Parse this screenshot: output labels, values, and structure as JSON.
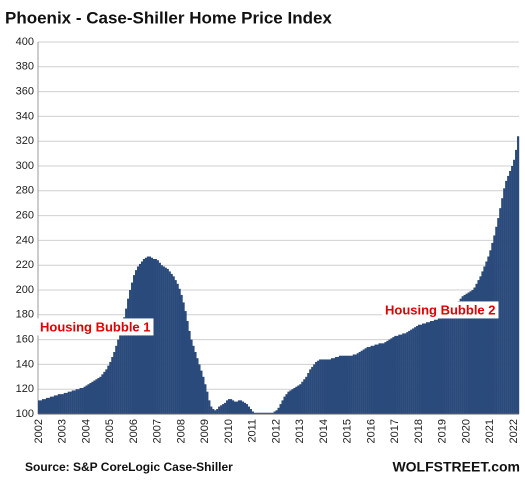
{
  "chart_data": {
    "type": "bar",
    "title": "Phoenix - Case-Shiller Home Price Index",
    "categories": [
      "2002",
      null,
      null,
      null,
      null,
      null,
      null,
      null,
      null,
      null,
      null,
      null,
      "2003",
      null,
      null,
      null,
      null,
      null,
      null,
      null,
      null,
      null,
      null,
      null,
      "2004",
      null,
      null,
      null,
      null,
      null,
      null,
      null,
      null,
      null,
      null,
      null,
      "2005",
      null,
      null,
      null,
      null,
      null,
      null,
      null,
      null,
      null,
      null,
      null,
      "2006",
      null,
      null,
      null,
      null,
      null,
      null,
      null,
      null,
      null,
      null,
      null,
      "2007",
      null,
      null,
      null,
      null,
      null,
      null,
      null,
      null,
      null,
      null,
      null,
      "2008",
      null,
      null,
      null,
      null,
      null,
      null,
      null,
      null,
      null,
      null,
      null,
      "2009",
      null,
      null,
      null,
      null,
      null,
      null,
      null,
      null,
      null,
      null,
      null,
      "2010",
      null,
      null,
      null,
      null,
      null,
      null,
      null,
      null,
      null,
      null,
      null,
      "2011",
      null,
      null,
      null,
      null,
      null,
      null,
      null,
      null,
      null,
      null,
      null,
      "2012",
      null,
      null,
      null,
      null,
      null,
      null,
      null,
      null,
      null,
      null,
      null,
      "2013",
      null,
      null,
      null,
      null,
      null,
      null,
      null,
      null,
      null,
      null,
      null,
      "2014",
      null,
      null,
      null,
      null,
      null,
      null,
      null,
      null,
      null,
      null,
      null,
      "2015",
      null,
      null,
      null,
      null,
      null,
      null,
      null,
      null,
      null,
      null,
      null,
      "2016",
      null,
      null,
      null,
      null,
      null,
      null,
      null,
      null,
      null,
      null,
      null,
      "2017",
      null,
      null,
      null,
      null,
      null,
      null,
      null,
      null,
      null,
      null,
      null,
      "2018",
      null,
      null,
      null,
      null,
      null,
      null,
      null,
      null,
      null,
      null,
      null,
      "2019",
      null,
      null,
      null,
      null,
      null,
      null,
      null,
      null,
      null,
      null,
      null,
      "2020",
      null,
      null,
      null,
      null,
      null,
      null,
      null,
      null,
      null,
      null,
      null,
      "2021",
      null,
      null,
      null,
      null,
      null,
      null,
      null,
      null,
      null,
      null,
      null,
      "2022",
      null,
      null
    ],
    "values": [
      111,
      111,
      112,
      112,
      113,
      113,
      114,
      114,
      115,
      115,
      116,
      116,
      116,
      117,
      117,
      118,
      118,
      119,
      119,
      120,
      120,
      121,
      121,
      122,
      123,
      124,
      125,
      126,
      127,
      128,
      129,
      130,
      132,
      134,
      136,
      139,
      142,
      146,
      150,
      155,
      160,
      166,
      172,
      178,
      185,
      193,
      200,
      206,
      212,
      216,
      219,
      221,
      223,
      225,
      226,
      227,
      227,
      226,
      225,
      225,
      224,
      222,
      220,
      219,
      218,
      217,
      215,
      213,
      211,
      208,
      205,
      201,
      196,
      190,
      183,
      175,
      167,
      160,
      155,
      150,
      145,
      140,
      135,
      130,
      124,
      118,
      111,
      106,
      104,
      103,
      104,
      106,
      107,
      108,
      109,
      111,
      112,
      112,
      111,
      110,
      110,
      111,
      111,
      110,
      109,
      108,
      106,
      104,
      102,
      101,
      101,
      101,
      101,
      101,
      101,
      101,
      101,
      101,
      101,
      102,
      103,
      105,
      108,
      111,
      114,
      116,
      118,
      119,
      120,
      121,
      122,
      123,
      124,
      126,
      128,
      130,
      133,
      136,
      138,
      140,
      142,
      143,
      144,
      144,
      144,
      144,
      144,
      144,
      145,
      145,
      146,
      146,
      147,
      147,
      147,
      147,
      147,
      147,
      147,
      148,
      148,
      149,
      150,
      151,
      152,
      153,
      154,
      154,
      155,
      155,
      156,
      156,
      157,
      157,
      157,
      158,
      159,
      160,
      161,
      162,
      163,
      163,
      164,
      164,
      165,
      165,
      166,
      167,
      168,
      169,
      170,
      171,
      172,
      172,
      173,
      173,
      174,
      174,
      175,
      175,
      176,
      176,
      177,
      177,
      178,
      179,
      180,
      181,
      183,
      185,
      187,
      189,
      191,
      193,
      195,
      196,
      197,
      198,
      199,
      200,
      202,
      205,
      208,
      211,
      215,
      219,
      223,
      227,
      232,
      238,
      244,
      251,
      258,
      266,
      274,
      282,
      288,
      292,
      296,
      300,
      305,
      313,
      324
    ],
    "color": "#2a4a7b",
    "ylim": [
      100,
      400
    ],
    "yticks": [
      100,
      120,
      140,
      160,
      180,
      200,
      220,
      240,
      260,
      280,
      300,
      320,
      340,
      360,
      380,
      400
    ],
    "grid": true,
    "annotations": [
      {
        "text": "Housing Bubble 1"
      },
      {
        "text": "Housing Bubble 2"
      }
    ],
    "source": "Source: S&P CoreLogic Case-Shiller",
    "credit": "WOLFSTREET.com"
  }
}
